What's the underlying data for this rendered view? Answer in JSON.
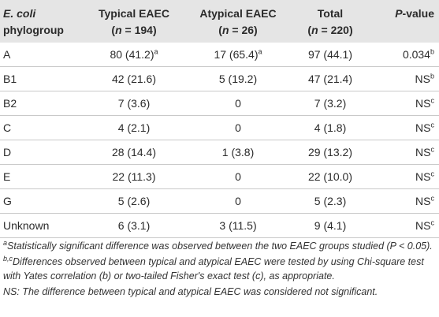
{
  "header": {
    "col1_line1": "E. coli",
    "col1_line2": "phylogroup",
    "col2_line1": "Typical EAEC",
    "col2_n_prefix": "(",
    "col2_n_var": "n",
    "col2_n_rest": " = 194)",
    "col3_line1": "Atypical EAEC",
    "col3_n_prefix": "(",
    "col3_n_var": "n",
    "col3_n_rest": " = 26)",
    "col4_line1": "Total",
    "col4_n_prefix": "(",
    "col4_n_var": "n",
    "col4_n_rest": " = 220)",
    "col5_var": "P",
    "col5_rest": "-value"
  },
  "rows": [
    {
      "group": "A",
      "typical": "80 (41.2)",
      "typical_sup": "a",
      "atypical": "17 (65.4)",
      "atypical_sup": "a",
      "total": "97 (44.1)",
      "p": "0.034",
      "p_sup": "b"
    },
    {
      "group": "B1",
      "typical": "42 (21.6)",
      "typical_sup": "",
      "atypical": "5 (19.2)",
      "atypical_sup": "",
      "total": "47 (21.4)",
      "p": "NS",
      "p_sup": "b"
    },
    {
      "group": "B2",
      "typical": "7 (3.6)",
      "typical_sup": "",
      "atypical": "0",
      "atypical_sup": "",
      "total": "7 (3.2)",
      "p": "NS",
      "p_sup": "c"
    },
    {
      "group": "C",
      "typical": "4 (2.1)",
      "typical_sup": "",
      "atypical": "0",
      "atypical_sup": "",
      "total": "4 (1.8)",
      "p": "NS",
      "p_sup": "c"
    },
    {
      "group": "D",
      "typical": "28 (14.4)",
      "typical_sup": "",
      "atypical": "1 (3.8)",
      "atypical_sup": "",
      "total": "29 (13.2)",
      "p": "NS",
      "p_sup": "c"
    },
    {
      "group": "E",
      "typical": "22 (11.3)",
      "typical_sup": "",
      "atypical": "0",
      "atypical_sup": "",
      "total": "22 (10.0)",
      "p": "NS",
      "p_sup": "c"
    },
    {
      "group": "G",
      "typical": "5 (2.6)",
      "typical_sup": "",
      "atypical": "0",
      "atypical_sup": "",
      "total": "5 (2.3)",
      "p": "NS",
      "p_sup": "c"
    },
    {
      "group": "Unknown",
      "typical": "6 (3.1)",
      "typical_sup": "",
      "atypical": "3 (11.5)",
      "atypical_sup": "",
      "total": "9 (4.1)",
      "p": "NS",
      "p_sup": "c"
    }
  ],
  "footnotes": {
    "a_sup": "a",
    "a_text": "Statistically significant difference was observed between the two EAEC groups studied (P < 0.05).",
    "bc_sup": "b,c",
    "bc_text": "Differences observed between typical and atypical EAEC were tested by using Chi-square test with Yates correlation (b) or two-tailed Fisher's exact test (c), as appropriate.",
    "ns_text": "NS: The difference between typical and atypical EAEC was considered not significant."
  },
  "colors": {
    "header_bg": "#e5e5e5",
    "rule": "#c9c9c9",
    "text": "#2b2b2b"
  }
}
